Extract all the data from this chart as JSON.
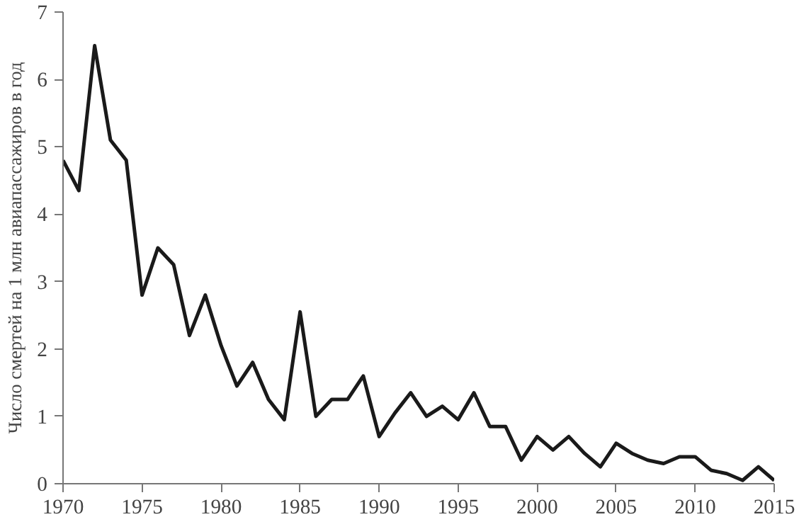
{
  "chart_data": {
    "type": "line",
    "ylabel": "Число смертей на 1 млн авиапассажиров в год",
    "x": [
      1970,
      1971,
      1972,
      1973,
      1974,
      1975,
      1976,
      1977,
      1978,
      1979,
      1980,
      1981,
      1982,
      1983,
      1984,
      1985,
      1986,
      1987,
      1988,
      1989,
      1990,
      1991,
      1992,
      1993,
      1994,
      1995,
      1996,
      1997,
      1998,
      1999,
      2000,
      2001,
      2002,
      2003,
      2004,
      2005,
      2006,
      2007,
      2008,
      2009,
      2010,
      2011,
      2012,
      2013,
      2014,
      2015
    ],
    "series": [
      {
        "color": "#1a1a1a",
        "values": [
          4.8,
          4.35,
          6.5,
          5.1,
          4.8,
          2.8,
          3.5,
          3.25,
          2.2,
          2.8,
          2.05,
          1.45,
          1.8,
          1.25,
          0.95,
          2.55,
          1.0,
          1.25,
          1.25,
          1.6,
          0.7,
          1.05,
          1.35,
          1.0,
          1.15,
          0.95,
          1.35,
          0.85,
          0.85,
          0.35,
          0.7,
          0.5,
          0.7,
          0.45,
          0.25,
          0.6,
          0.45,
          0.35,
          0.3,
          0.4,
          0.4,
          0.2,
          0.15,
          0.05,
          0.25,
          0.05
        ]
      }
    ],
    "xlim": [
      1970,
      2015
    ],
    "xticks": [
      1970,
      1975,
      1980,
      1985,
      1990,
      1995,
      2000,
      2005,
      2010,
      2015
    ],
    "ylim": [
      0,
      7
    ],
    "yticks": [
      0,
      1,
      2,
      3,
      4,
      5,
      6,
      7
    ],
    "grid": false,
    "marker": "none",
    "line_style": "solid"
  }
}
